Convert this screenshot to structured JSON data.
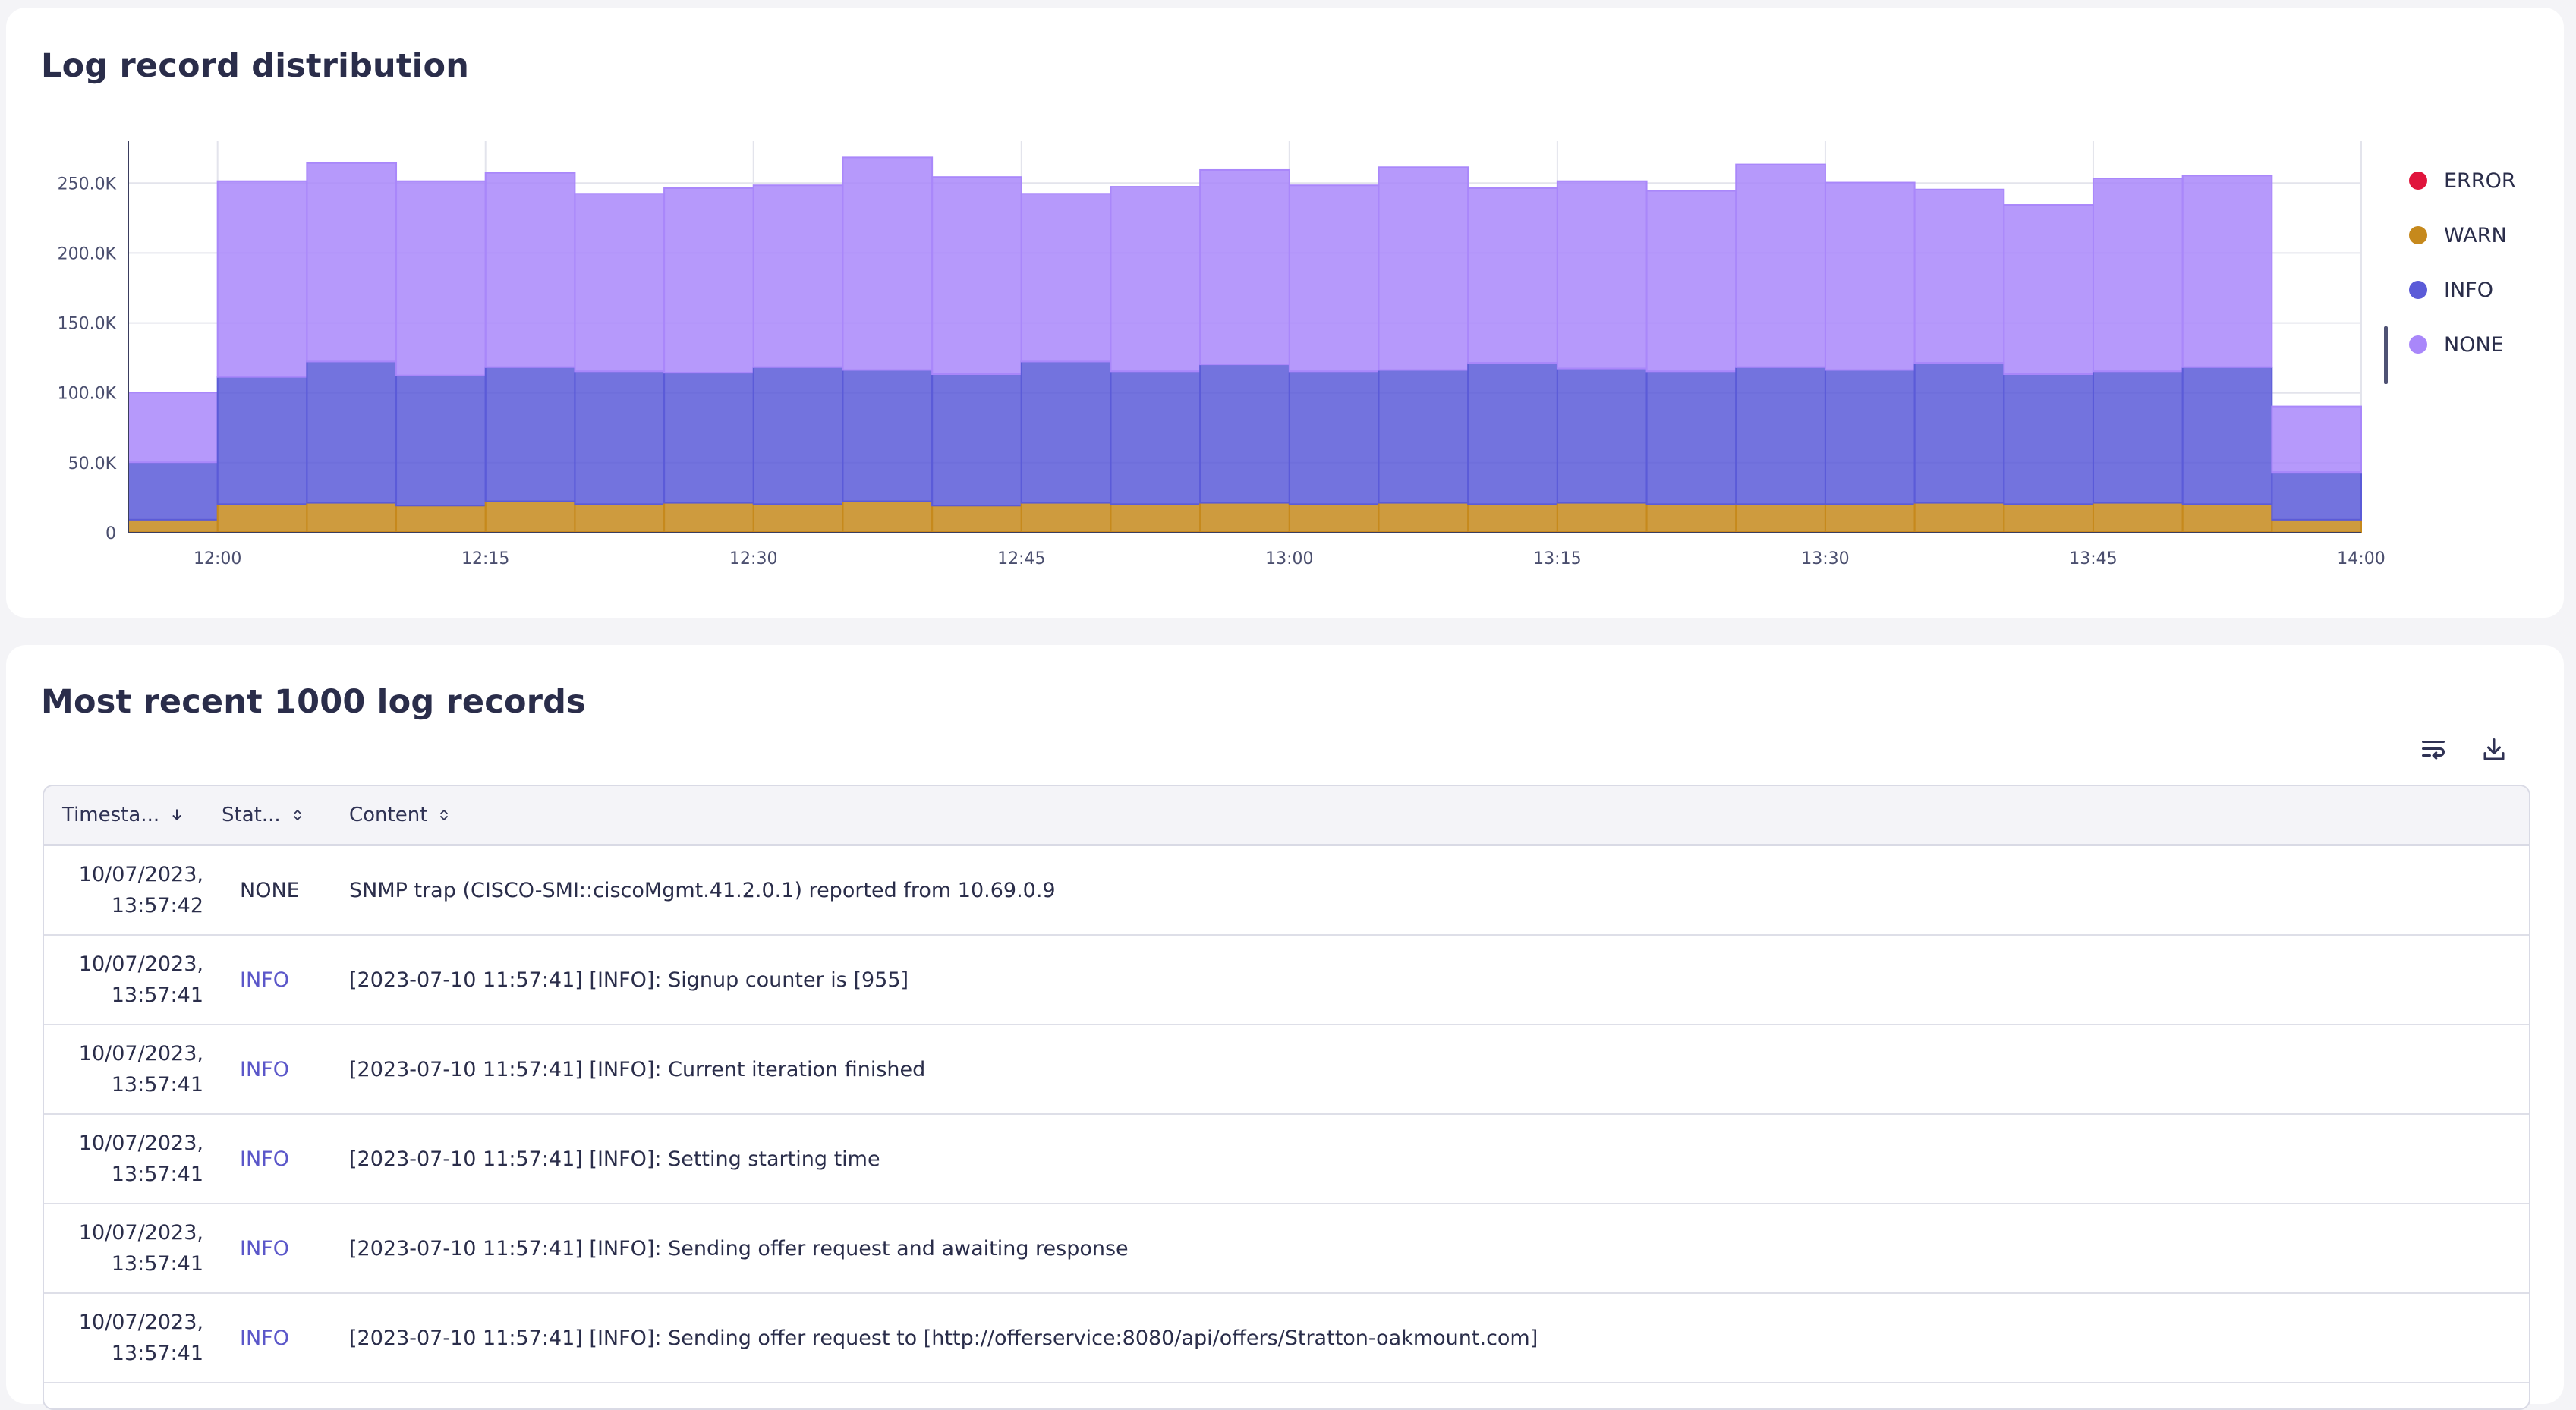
{
  "chart_panel": {
    "title": "Log record distribution"
  },
  "chart_data": {
    "type": "bar",
    "stacked": true,
    "title": "Log record distribution",
    "x": [
      "11:55",
      "12:00",
      "12:05",
      "12:10",
      "12:15",
      "12:20",
      "12:25",
      "12:30",
      "12:35",
      "12:40",
      "12:45",
      "12:50",
      "12:55",
      "13:00",
      "13:05",
      "13:10",
      "13:15",
      "13:20",
      "13:25",
      "13:30",
      "13:35",
      "13:40",
      "13:45",
      "13:50",
      "13:55"
    ],
    "x_ticks": [
      "12:00",
      "12:15",
      "12:30",
      "12:45",
      "13:00",
      "13:15",
      "13:30",
      "13:45",
      "14:00"
    ],
    "y_ticks": [
      "0",
      "50.0K",
      "100.0K",
      "150.0K",
      "200.0K",
      "250.0K"
    ],
    "ylim": [
      0,
      280000
    ],
    "grid": true,
    "legend_position": "right",
    "series": [
      {
        "name": "ERROR",
        "color": "#e0143c",
        "values": [
          300,
          400,
          400,
          400,
          400,
          400,
          400,
          400,
          400,
          400,
          400,
          400,
          400,
          400,
          400,
          400,
          400,
          400,
          400,
          400,
          400,
          400,
          400,
          400,
          300
        ]
      },
      {
        "name": "WARN",
        "color": "#c6891c",
        "values": [
          9000,
          20000,
          21000,
          19000,
          22000,
          20000,
          21000,
          20000,
          22000,
          19000,
          21000,
          20000,
          21000,
          20000,
          21000,
          20000,
          21000,
          20000,
          20000,
          20000,
          21000,
          20000,
          21000,
          20000,
          9000
        ]
      },
      {
        "name": "INFO",
        "color": "#5b5bd8",
        "values": [
          41000,
          91000,
          101000,
          93000,
          96000,
          95000,
          93000,
          98000,
          94000,
          94000,
          101000,
          95000,
          99000,
          95000,
          95000,
          101000,
          96000,
          95000,
          98000,
          96000,
          100000,
          93000,
          94000,
          98000,
          34000
        ]
      },
      {
        "name": "NONE",
        "color": "#a987fa",
        "values": [
          50000,
          140000,
          142000,
          139000,
          139000,
          127000,
          132000,
          130000,
          152000,
          141000,
          120000,
          132000,
          139000,
          133000,
          145000,
          125000,
          134000,
          129000,
          145000,
          134000,
          124000,
          121000,
          138000,
          137000,
          47000
        ]
      }
    ]
  },
  "table_panel": {
    "title": "Most recent 1000 log records",
    "wrap_icon": "wrap-lines-icon",
    "download_icon": "download-icon",
    "columns": {
      "timestamp": "Timesta...",
      "status": "Stat...",
      "content": "Content"
    },
    "rows": [
      {
        "date": "10/07/2023,",
        "time": "13:57:42",
        "status": "NONE",
        "content": "SNMP trap (CISCO-SMI::ciscoMgmt.41.2.0.1) reported from 10.69.0.9"
      },
      {
        "date": "10/07/2023,",
        "time": "13:57:41",
        "status": "INFO",
        "content": "[2023-07-10 11:57:41] [INFO]: Signup counter is [955]"
      },
      {
        "date": "10/07/2023,",
        "time": "13:57:41",
        "status": "INFO",
        "content": "[2023-07-10 11:57:41] [INFO]: Current iteration finished"
      },
      {
        "date": "10/07/2023,",
        "time": "13:57:41",
        "status": "INFO",
        "content": "[2023-07-10 11:57:41] [INFO]: Setting starting time"
      },
      {
        "date": "10/07/2023,",
        "time": "13:57:41",
        "status": "INFO",
        "content": "[2023-07-10 11:57:41] [INFO]: Sending offer request and awaiting response"
      },
      {
        "date": "10/07/2023,",
        "time": "13:57:41",
        "status": "INFO",
        "content": "[2023-07-10 11:57:41] [INFO]: Sending offer request to [http://offerservice:8080/api/offers/Stratton-oakmount.com]"
      }
    ]
  }
}
